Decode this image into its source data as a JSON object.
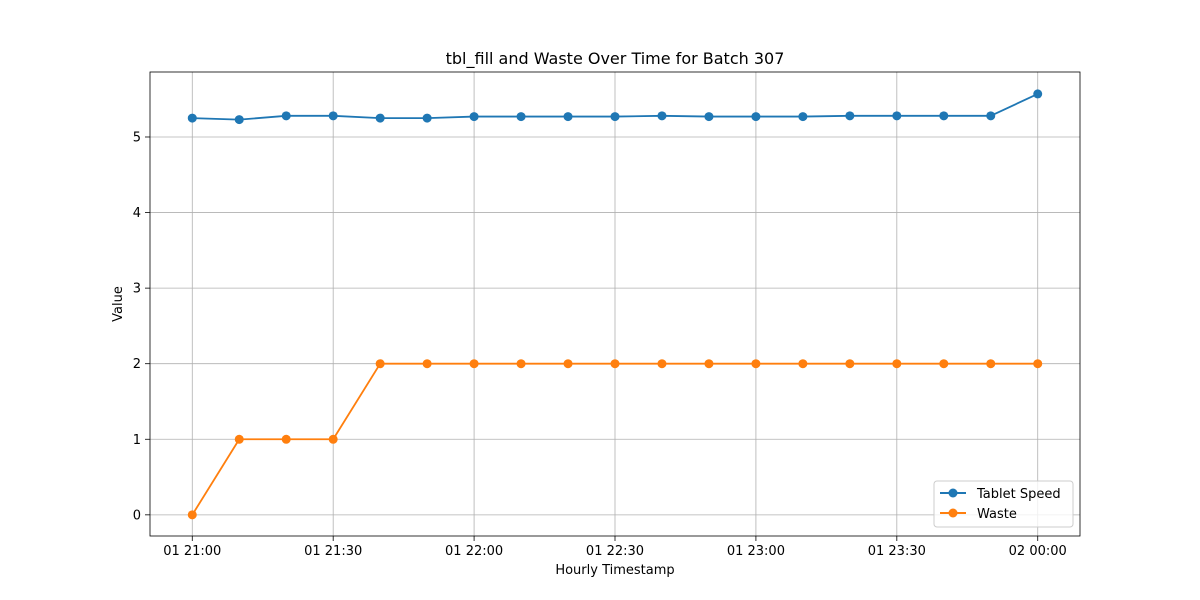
{
  "chart_data": {
    "type": "line",
    "title": "tbl_fill and Waste Over Time for Batch 307",
    "xlabel": "Hourly Timestamp",
    "ylabel": "Value",
    "x_index": [
      0,
      1,
      2,
      3,
      4,
      5,
      6,
      7,
      8,
      9,
      10,
      11,
      12,
      13,
      14,
      15,
      16,
      17,
      18
    ],
    "x_ticks": [
      {
        "index": 0,
        "label": "01 21:00"
      },
      {
        "index": 3,
        "label": "01 21:30"
      },
      {
        "index": 6,
        "label": "01 22:00"
      },
      {
        "index": 9,
        "label": "01 22:30"
      },
      {
        "index": 12,
        "label": "01 23:00"
      },
      {
        "index": 15,
        "label": "01 23:30"
      },
      {
        "index": 18,
        "label": "02 00:00"
      }
    ],
    "x_range": [
      -0.9,
      18.9
    ],
    "ylim": [
      -0.28,
      5.86
    ],
    "y_ticks": [
      0,
      1,
      2,
      3,
      4,
      5
    ],
    "grid": true,
    "legend_location": "bottom-right",
    "series": [
      {
        "name": "Tablet Speed",
        "color": "#1f77b4",
        "values": [
          5.25,
          5.23,
          5.28,
          5.28,
          5.25,
          5.25,
          5.27,
          5.27,
          5.27,
          5.27,
          5.28,
          5.27,
          5.27,
          5.27,
          5.28,
          5.28,
          5.28,
          5.28,
          5.57
        ]
      },
      {
        "name": "Waste",
        "color": "#ff7f0e",
        "values": [
          0,
          1,
          1,
          1,
          2,
          2,
          2,
          2,
          2,
          2,
          2,
          2,
          2,
          2,
          2,
          2,
          2,
          2,
          2
        ]
      }
    ]
  }
}
